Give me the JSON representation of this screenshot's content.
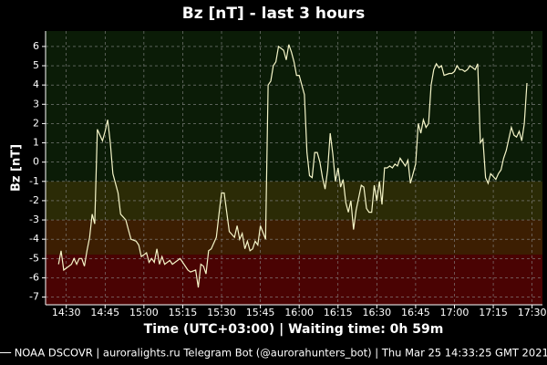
{
  "chart_data": {
    "type": "line",
    "title": "Bz [nT] - last 3 hours",
    "y_label": "Bz [nT]",
    "x_label": "Time (UTC+03:00) | Waiting time: 0h 59m",
    "footer": "── NOAA DSCOVR | auroralights.ru Telegram Bot (@aurorahunters_bot) | Thu Mar 25 14:33:25 GMT 2021",
    "grid": true,
    "background": "#000000",
    "bands": [
      {
        "from": -1,
        "to": 6.8,
        "color": "#0b1c07"
      },
      {
        "from": -3,
        "to": -1,
        "color": "#2b2b06"
      },
      {
        "from": -4.8,
        "to": -3,
        "color": "#3c1e02"
      },
      {
        "from": -7.4,
        "to": -4.8,
        "color": "#4a0303"
      }
    ],
    "xlim": [
      "14:22",
      "17:34"
    ],
    "xticks": [
      "14:30",
      "14:45",
      "15:00",
      "15:15",
      "15:30",
      "15:45",
      "16:00",
      "16:15",
      "16:30",
      "16:45",
      "17:00",
      "17:15",
      "17:30"
    ],
    "ylim": [
      -7.4,
      6.8
    ],
    "yticks": [
      -7,
      -6,
      -5,
      -4,
      -3,
      -2,
      -1,
      0,
      1,
      2,
      3,
      4,
      5,
      6
    ],
    "x": [
      "14:27",
      "14:28",
      "14:29",
      "14:30",
      "14:32",
      "14:33",
      "14:34",
      "14:35",
      "14:36",
      "14:37",
      "14:38",
      "14:39",
      "14:40",
      "14:41",
      "14:42",
      "14:44",
      "14:45",
      "14:46",
      "14:47",
      "14:48",
      "14:50",
      "14:51",
      "14:53",
      "14:54",
      "14:55",
      "14:57",
      "14:58",
      "14:59",
      "15:01",
      "15:02",
      "15:03",
      "15:04",
      "15:05",
      "15:06",
      "15:07",
      "15:08",
      "15:10",
      "15:11",
      "15:13",
      "15:14",
      "15:15",
      "15:17",
      "15:18",
      "15:20",
      "15:21",
      "15:22",
      "15:23",
      "15:24",
      "15:25",
      "15:26",
      "15:28",
      "15:29",
      "15:30",
      "15:31",
      "15:32",
      "15:33",
      "15:35",
      "15:36",
      "15:37",
      "15:38",
      "15:39",
      "15:40",
      "15:41",
      "15:42",
      "15:43",
      "15:44",
      "15:45",
      "15:47",
      "15:48",
      "15:49",
      "15:50",
      "15:51",
      "15:52",
      "15:54",
      "15:55",
      "15:56",
      "15:57",
      "15:58",
      "15:59",
      "16:00",
      "16:02",
      "16:03",
      "16:04",
      "16:05",
      "16:06",
      "16:07",
      "16:08",
      "16:09",
      "16:10",
      "16:11",
      "16:12",
      "16:13",
      "16:14",
      "16:15",
      "16:16",
      "16:17",
      "16:18",
      "16:19",
      "16:20",
      "16:21",
      "16:22",
      "16:24",
      "16:25",
      "16:26",
      "16:27",
      "16:28",
      "16:29",
      "16:30",
      "16:31",
      "16:32",
      "16:33",
      "16:34",
      "16:35",
      "16:36",
      "16:37",
      "16:38",
      "16:39",
      "16:41",
      "16:42",
      "16:43",
      "16:44",
      "16:45",
      "16:46",
      "16:47",
      "16:48",
      "16:49",
      "16:50",
      "16:51",
      "16:52",
      "16:53",
      "16:54",
      "16:55",
      "16:56",
      "16:58",
      "16:59",
      "17:00",
      "17:01",
      "17:02",
      "17:03",
      "17:04",
      "17:05",
      "17:06",
      "17:07",
      "17:08",
      "17:09",
      "17:10",
      "17:11",
      "17:12",
      "17:13",
      "17:14",
      "17:16",
      "17:17",
      "17:18",
      "17:19",
      "17:20",
      "17:21",
      "17:22",
      "17:23",
      "17:24",
      "17:25",
      "17:26",
      "17:27",
      "17:28"
    ],
    "series": [
      {
        "name": "NOAA DSCOVR",
        "color": "#f5f5c8",
        "values": [
          -5.3,
          -4.6,
          -5.6,
          -5.5,
          -5.3,
          -5.0,
          -5.3,
          -5.0,
          -5.0,
          -5.4,
          -4.6,
          -3.9,
          -2.7,
          -3.2,
          1.7,
          1.1,
          1.6,
          2.2,
          1.0,
          -0.6,
          -1.6,
          -2.7,
          -3.0,
          -3.5,
          -4.0,
          -4.1,
          -4.3,
          -4.9,
          -4.7,
          -5.2,
          -5.0,
          -5.2,
          -4.5,
          -5.3,
          -4.9,
          -5.3,
          -5.1,
          -5.3,
          -5.1,
          -5.0,
          -5.2,
          -5.6,
          -5.7,
          -5.6,
          -6.5,
          -5.3,
          -5.4,
          -5.8,
          -4.6,
          -4.5,
          -3.9,
          -2.7,
          -1.6,
          -1.6,
          -2.6,
          -3.6,
          -3.9,
          -3.3,
          -4.0,
          -3.7,
          -4.5,
          -4.1,
          -4.6,
          -4.5,
          -4.1,
          -4.3,
          -3.3,
          -4.0,
          4.0,
          4.2,
          5.0,
          5.2,
          6.0,
          5.8,
          5.3,
          6.1,
          5.7,
          5.2,
          4.5,
          4.5,
          3.5,
          0.5,
          -0.7,
          -0.8,
          0.5,
          0.5,
          0,
          -0.8,
          -1.4,
          -0.4,
          1.5,
          0.4,
          -1.0,
          -0.3,
          -1.3,
          -0.9,
          -2.1,
          -2.6,
          -2.0,
          -3.5,
          -2.5,
          -1.2,
          -1.3,
          -2.4,
          -2.6,
          -2.6,
          -1.2,
          -2.0,
          -1.0,
          -2.2,
          -0.3,
          -0.3,
          -0.2,
          -0.3,
          -0.1,
          -0.2,
          0.2,
          -0.2,
          0.1,
          -1.1,
          -0.6,
          -0.1,
          2.0,
          1.5,
          2.2,
          1.8,
          2.0,
          4.0,
          4.8,
          5.1,
          4.9,
          5.0,
          4.5,
          4.6,
          4.6,
          4.7,
          5.0,
          4.8,
          4.8,
          4.7,
          4.8,
          5.0,
          4.9,
          4.8,
          5.1,
          1.0,
          1.2,
          -0.8,
          -1.1,
          -0.6,
          -0.9,
          -0.6,
          -0.4,
          0.2,
          0.6,
          1.2,
          1.8,
          1.4,
          1.3,
          1.6,
          1.1,
          2.0,
          4.1
        ]
      }
    ]
  }
}
